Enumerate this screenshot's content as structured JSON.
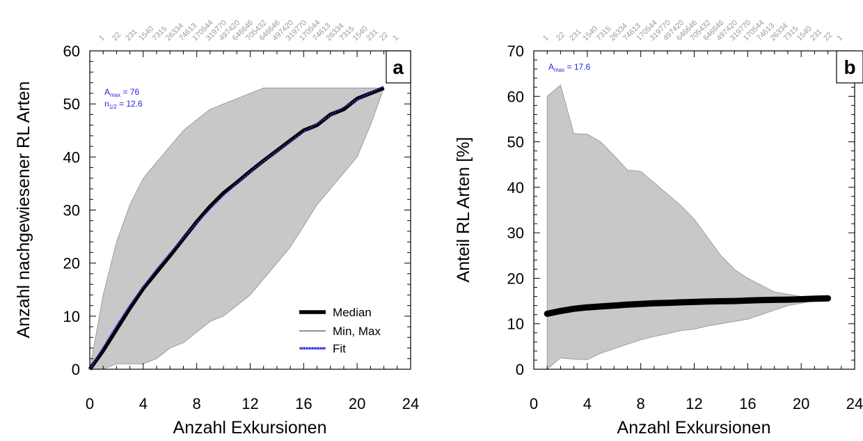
{
  "colors": {
    "band": "#c8c8c8",
    "median": "#000000",
    "minmax": "#8f8f8f",
    "fit": "#3b3bff",
    "annotation": "#1e1ee6",
    "top_ticks": "#9a9a9a"
  },
  "chart_data": [
    {
      "panel": "a",
      "type": "line",
      "xlabel": "Anzahl Exkursionen",
      "ylabel": "Anzahl nachgewiesener RL Arten",
      "xlim": [
        0,
        24
      ],
      "ylim": [
        0,
        60
      ],
      "xticks": [
        "0",
        "4",
        "8",
        "12",
        "16",
        "20",
        "24"
      ],
      "yticks": [
        "0",
        "10",
        "20",
        "30",
        "40",
        "50",
        "60"
      ],
      "top_axis_labels": [
        "1",
        "22",
        "231",
        "1540",
        "7315",
        "26334",
        "74613",
        "170544",
        "319770",
        "497420",
        "646646",
        "705432",
        "646646",
        "497420",
        "319770",
        "170544",
        "74613",
        "26334",
        "7315",
        "1540",
        "231",
        "22",
        "1"
      ],
      "annotations": [
        {
          "prefix": "A",
          "sub": "max",
          "suffix": " = 76"
        },
        {
          "prefix": "n",
          "sub": "1/2",
          "suffix": " = 12.6"
        }
      ],
      "legend": [
        "Median",
        "Min, Max",
        "Fit"
      ],
      "legend_position": "bottom-right",
      "band": {
        "x": [
          0,
          1,
          2,
          3,
          4,
          5,
          6,
          7,
          8,
          9,
          10,
          11,
          12,
          13,
          14,
          15,
          16,
          17,
          18,
          19,
          20,
          21,
          22
        ],
        "max": [
          0,
          14,
          24,
          31,
          36,
          39,
          42,
          45,
          47,
          49,
          50,
          51,
          52,
          53,
          53,
          53,
          53,
          53,
          53,
          53,
          53,
          53,
          53
        ],
        "min": [
          0,
          0,
          1,
          1,
          1,
          2,
          4,
          5,
          7,
          9,
          10,
          12,
          14,
          17,
          20,
          23,
          27,
          31,
          34,
          37,
          40,
          46,
          53
        ]
      },
      "series": [
        {
          "name": "Median",
          "x": [
            0,
            1,
            2,
            3,
            4,
            5,
            6,
            7,
            8,
            9,
            10,
            11,
            12,
            13,
            14,
            15,
            16,
            17,
            18,
            19,
            20,
            21,
            22
          ],
          "y": [
            0,
            3.5,
            7.5,
            11.5,
            15.2,
            18.3,
            21.4,
            24.6,
            27.8,
            30.7,
            33.2,
            35.2,
            37.3,
            39.3,
            41.2,
            43.1,
            45.0,
            46.0,
            48.0,
            49.0,
            51.0,
            52.0,
            53.0
          ]
        },
        {
          "name": "Fit",
          "x": [
            0,
            1,
            2,
            3,
            4,
            5,
            6,
            7,
            8,
            9,
            10,
            11,
            12,
            13,
            14,
            15,
            16,
            17,
            18,
            19,
            20,
            21,
            22
          ],
          "y": [
            0,
            4.2,
            8.3,
            12.1,
            15.6,
            18.9,
            21.9,
            24.8,
            27.6,
            30.2,
            32.7,
            35.0,
            37.1,
            39.2,
            41.1,
            42.9,
            44.7,
            46.3,
            47.9,
            49.4,
            50.8,
            52.1,
            53.4
          ]
        }
      ]
    },
    {
      "panel": "b",
      "type": "line",
      "xlabel": "Anzahl Exkursionen",
      "ylabel": "Anteil RL Arten [%]",
      "xlim": [
        0,
        24
      ],
      "ylim": [
        0,
        70
      ],
      "xticks": [
        "0",
        "4",
        "8",
        "12",
        "16",
        "20",
        "24"
      ],
      "yticks": [
        "0",
        "10",
        "20",
        "30",
        "40",
        "50",
        "60",
        "70"
      ],
      "top_axis_labels": [
        "1",
        "22",
        "231",
        "1540",
        "7315",
        "26334",
        "74613",
        "170544",
        "319770",
        "497420",
        "646646",
        "705432",
        "646646",
        "497420",
        "319770",
        "170544",
        "74613",
        "26334",
        "7315",
        "1540",
        "231",
        "22",
        "1"
      ],
      "annotations": [
        {
          "prefix": "A",
          "sub": "max",
          "suffix": " =  17.6"
        }
      ],
      "band": {
        "x": [
          1,
          2,
          3,
          4,
          5,
          6,
          7,
          8,
          9,
          10,
          11,
          12,
          13,
          14,
          15,
          16,
          17,
          18,
          19,
          20,
          21,
          22
        ],
        "max": [
          60,
          62.5,
          51.8,
          51.7,
          50,
          47,
          43.8,
          43.5,
          41,
          38.5,
          36,
          33,
          29,
          25,
          22,
          20,
          18.5,
          17,
          16.5,
          16,
          15.8,
          15.6
        ],
        "min": [
          0,
          2.5,
          2.2,
          2.1,
          3.5,
          4.5,
          5.5,
          6.5,
          7.2,
          7.8,
          8.5,
          8.8,
          9.5,
          10,
          10.5,
          11,
          12,
          13,
          14,
          14.5,
          15.2,
          15.6
        ]
      },
      "series": [
        {
          "name": "Median",
          "x": [
            1,
            2,
            3,
            4,
            5,
            6,
            7,
            8,
            9,
            10,
            11,
            12,
            13,
            14,
            15,
            16,
            17,
            18,
            19,
            20,
            21,
            22
          ],
          "y": [
            12.2,
            12.8,
            13.3,
            13.6,
            13.8,
            14.0,
            14.2,
            14.35,
            14.5,
            14.6,
            14.7,
            14.8,
            14.9,
            14.95,
            15.0,
            15.1,
            15.2,
            15.25,
            15.3,
            15.4,
            15.5,
            15.6
          ]
        }
      ]
    }
  ]
}
